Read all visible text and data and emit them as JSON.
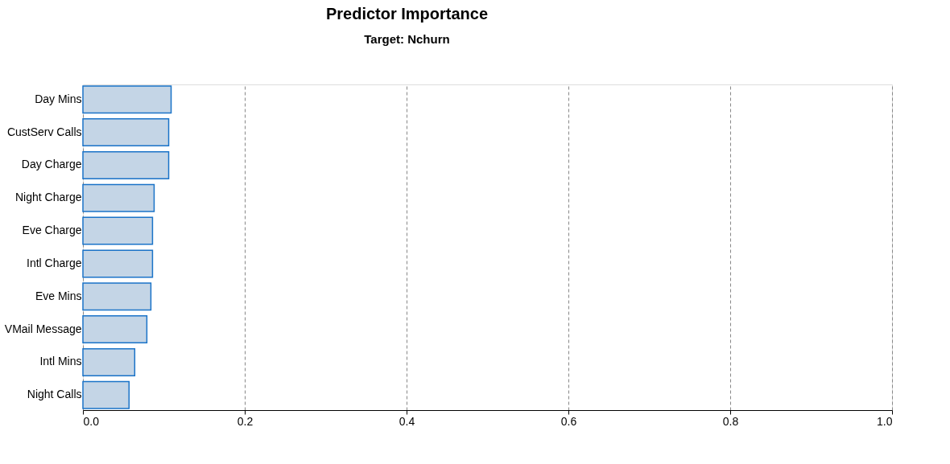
{
  "chart_data": {
    "type": "bar",
    "orientation": "horizontal",
    "title": "Predictor Importance",
    "subtitle": "Target: Nchurn",
    "categories": [
      "Day Mins",
      "CustServ Calls",
      "Day Charge",
      "Night Charge",
      "Eve Charge",
      "Intl Charge",
      "Eve Mins",
      "VMail Message",
      "Intl Mins",
      "Night Calls"
    ],
    "values": [
      0.109,
      0.106,
      0.106,
      0.088,
      0.086,
      0.086,
      0.084,
      0.079,
      0.064,
      0.057
    ],
    "color": "#c4d5e6",
    "xlim": [
      0,
      1
    ],
    "xticks": [
      {
        "value": 0,
        "label": "0.0"
      },
      {
        "value": 0.2,
        "label": "0.2"
      },
      {
        "value": 0.4,
        "label": "0.4"
      },
      {
        "value": 0.6,
        "label": "0.6"
      },
      {
        "value": 0.8,
        "label": "0.8"
      },
      {
        "value": 1,
        "label": "1.0"
      }
    ],
    "grid": "x"
  }
}
